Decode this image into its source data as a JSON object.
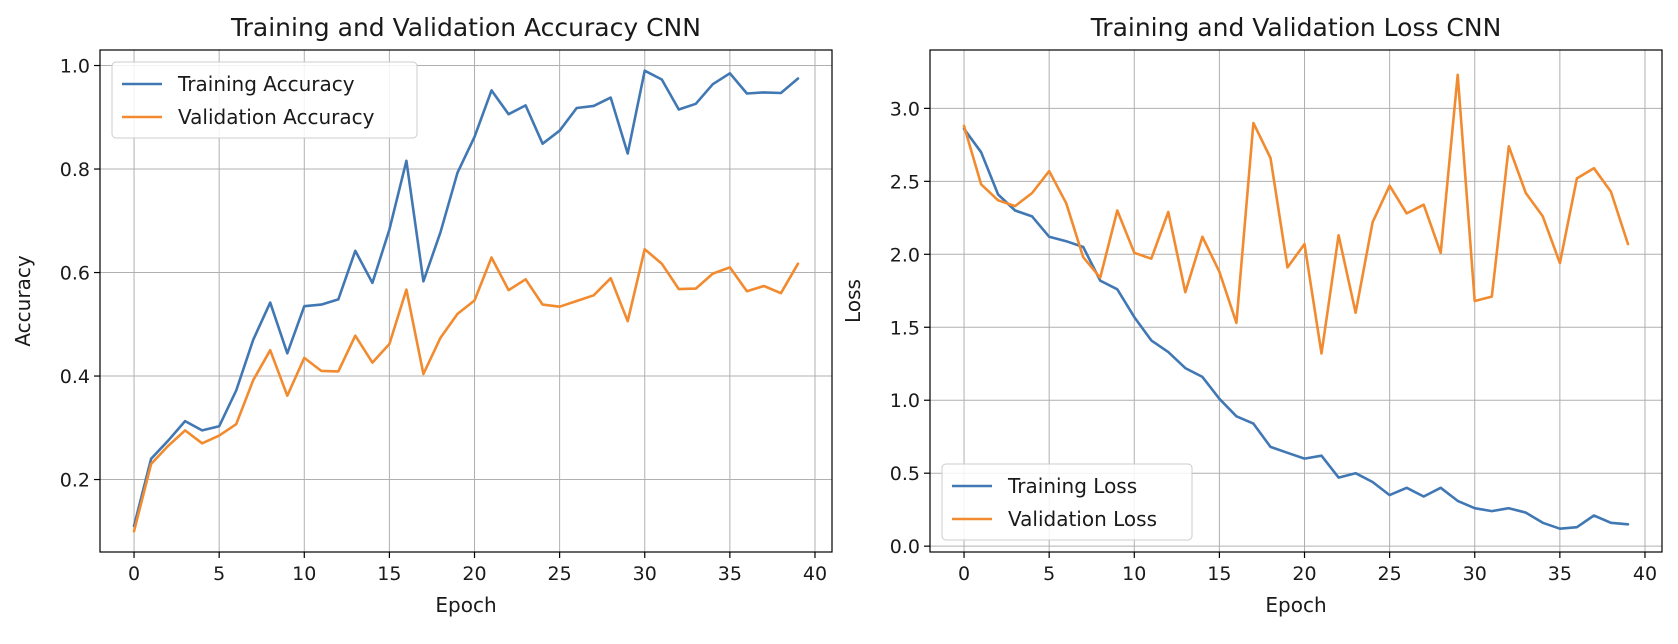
{
  "chart_data": [
    {
      "type": "line",
      "title": "Training and Validation Accuracy CNN",
      "xlabel": "Epoch",
      "ylabel": "Accuracy",
      "xlim": [
        -2,
        41
      ],
      "ylim": [
        0.06,
        1.03
      ],
      "xticks": [
        0,
        5,
        10,
        15,
        20,
        25,
        30,
        35,
        40
      ],
      "yticks": [
        0.2,
        0.4,
        0.6,
        0.8,
        1.0
      ],
      "ytick_labels": [
        "0.2",
        "0.4",
        "0.6",
        "0.8",
        "1.0"
      ],
      "grid": true,
      "legend_position": "upper-left",
      "x": [
        0,
        1,
        2,
        3,
        4,
        5,
        6,
        7,
        8,
        9,
        10,
        11,
        12,
        13,
        14,
        15,
        16,
        17,
        18,
        19,
        20,
        21,
        22,
        23,
        24,
        25,
        26,
        27,
        28,
        29,
        30,
        31,
        32,
        33,
        34,
        35,
        36,
        37,
        38,
        39
      ],
      "series": [
        {
          "name": "Training Accuracy",
          "color": "#4178b4",
          "values": [
            0.11,
            0.24,
            0.275,
            0.313,
            0.295,
            0.303,
            0.372,
            0.47,
            0.542,
            0.444,
            0.535,
            0.538,
            0.548,
            0.642,
            0.58,
            0.683,
            0.816,
            0.583,
            0.678,
            0.793,
            0.862,
            0.952,
            0.906,
            0.923,
            0.849,
            0.874,
            0.918,
            0.922,
            0.938,
            0.83,
            0.99,
            0.973,
            0.915,
            0.926,
            0.964,
            0.985,
            0.946,
            0.948,
            0.947,
            0.975
          ]
        },
        {
          "name": "Validation Accuracy",
          "color": "#f28b2f",
          "values": [
            0.1,
            0.23,
            0.265,
            0.295,
            0.27,
            0.285,
            0.307,
            0.392,
            0.45,
            0.362,
            0.435,
            0.41,
            0.409,
            0.478,
            0.426,
            0.462,
            0.567,
            0.404,
            0.474,
            0.52,
            0.546,
            0.629,
            0.566,
            0.587,
            0.538,
            0.534,
            0.545,
            0.556,
            0.589,
            0.506,
            0.645,
            0.617,
            0.568,
            0.569,
            0.598,
            0.61,
            0.564,
            0.574,
            0.56,
            0.617
          ]
        }
      ]
    },
    {
      "type": "line",
      "title": "Training and Validation Loss CNN",
      "xlabel": "Epoch",
      "ylabel": "Loss",
      "xlim": [
        -2,
        41
      ],
      "ylim": [
        -0.04,
        3.4
      ],
      "xticks": [
        0,
        5,
        10,
        15,
        20,
        25,
        30,
        35,
        40
      ],
      "yticks": [
        0.0,
        0.5,
        1.0,
        1.5,
        2.0,
        2.5,
        3.0
      ],
      "ytick_labels": [
        "0.0",
        "0.5",
        "1.0",
        "1.5",
        "2.0",
        "2.5",
        "3.0"
      ],
      "grid": true,
      "legend_position": "lower-left",
      "x": [
        0,
        1,
        2,
        3,
        4,
        5,
        6,
        7,
        8,
        9,
        10,
        11,
        12,
        13,
        14,
        15,
        16,
        17,
        18,
        19,
        20,
        21,
        22,
        23,
        24,
        25,
        26,
        27,
        28,
        29,
        30,
        31,
        32,
        33,
        34,
        35,
        36,
        37,
        38,
        39
      ],
      "series": [
        {
          "name": "Training Loss",
          "color": "#4178b4",
          "values": [
            2.86,
            2.7,
            2.41,
            2.3,
            2.26,
            2.12,
            2.09,
            2.05,
            1.82,
            1.76,
            1.57,
            1.41,
            1.33,
            1.22,
            1.16,
            1.01,
            0.89,
            0.84,
            0.68,
            0.64,
            0.6,
            0.62,
            0.47,
            0.5,
            0.44,
            0.35,
            0.4,
            0.34,
            0.4,
            0.31,
            0.26,
            0.24,
            0.26,
            0.23,
            0.16,
            0.12,
            0.13,
            0.21,
            0.16,
            0.15
          ]
        },
        {
          "name": "Validation Loss",
          "color": "#f28b2f",
          "values": [
            2.88,
            2.48,
            2.37,
            2.33,
            2.42,
            2.57,
            2.35,
            1.98,
            1.84,
            2.3,
            2.01,
            1.97,
            2.29,
            1.74,
            2.12,
            1.88,
            1.53,
            2.9,
            2.66,
            1.91,
            2.07,
            1.32,
            2.13,
            1.6,
            2.22,
            2.47,
            2.28,
            2.34,
            2.01,
            3.23,
            1.68,
            1.71,
            2.74,
            2.42,
            2.26,
            1.94,
            2.52,
            2.59,
            2.43,
            2.07
          ]
        }
      ]
    }
  ]
}
